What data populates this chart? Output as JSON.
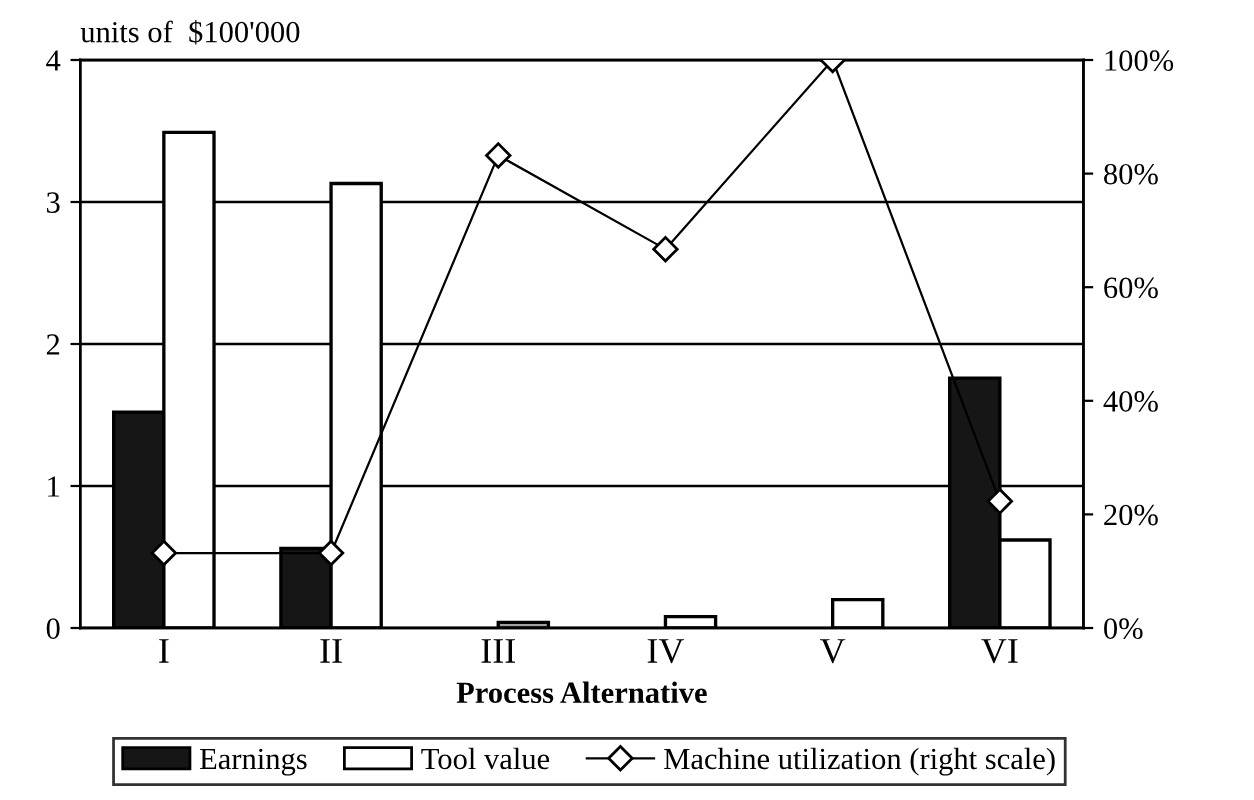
{
  "chart_data": {
    "type": "bar",
    "ylabel": "units of  $100'000",
    "xlabel": "Process Alternative",
    "categories": [
      "I",
      "II",
      "III",
      "IV",
      "V",
      "VI"
    ],
    "series": [
      {
        "name": "Earnings",
        "color": "#161616",
        "values": [
          1.52,
          0.56,
          null,
          null,
          null,
          1.76
        ]
      },
      {
        "name": "Tool value",
        "color": "#ffffff",
        "colors": [
          "#ffffff",
          "#ffffff",
          "#a0a0a0",
          "#ffffff",
          "#ffffff",
          "#ffffff"
        ],
        "values": [
          3.49,
          3.13,
          0.04,
          0.08,
          0.2,
          0.62
        ]
      },
      {
        "name": "Machine utilization (right scale)",
        "type": "line",
        "axis": "y2",
        "color": "#000000",
        "marker": "diamond",
        "values": [
          13.2,
          13.2,
          83.2,
          66.7,
          100,
          22.3
        ]
      }
    ],
    "ylim": [
      0,
      4
    ],
    "yticks": [
      0,
      1,
      2,
      3,
      4
    ],
    "y2lim": [
      0,
      100
    ],
    "y2ticks": [
      {
        "value": 0,
        "label": "0%"
      },
      {
        "value": 20,
        "label": "20%"
      },
      {
        "value": 40,
        "label": "40%"
      },
      {
        "value": 60,
        "label": "60%"
      },
      {
        "value": 80,
        "label": "80%"
      },
      {
        "value": 100,
        "label": "100%"
      }
    ],
    "grid": "y",
    "legend": "bottom"
  }
}
